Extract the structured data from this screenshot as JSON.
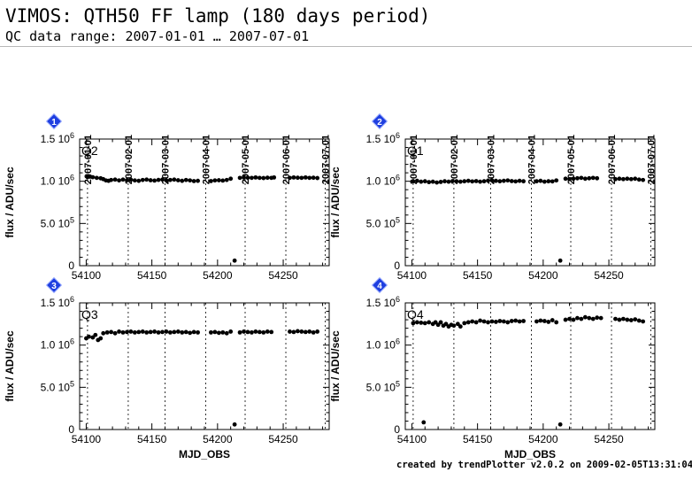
{
  "header": {
    "title": "VIMOS: QTH50 FF lamp (180 days period)",
    "subtitle": "QC data range: 2007-01-01 … 2007-07-01"
  },
  "footer": {
    "text": "created by trendPlotter v2.0.2 on 2009-02-05T13:31:04"
  },
  "colors": {
    "marker": "#000000",
    "badge": "#1f3fe0",
    "rule": "#b8b8b8"
  },
  "chart_data": {
    "type": "scatter",
    "xlabel": "MJD_OBS",
    "ylabel": "flux / ADU/sec",
    "xlim": [
      54095,
      54285
    ],
    "ylim": [
      0,
      1500000
    ],
    "x_ticks": [
      {
        "value": 54100,
        "label": "54100"
      },
      {
        "value": 54150,
        "label": "54150"
      },
      {
        "value": 54200,
        "label": "54200"
      },
      {
        "value": 54250,
        "label": "54250"
      }
    ],
    "y_ticks": [
      {
        "value": 0,
        "mant": "0",
        "exp": ""
      },
      {
        "value": 500000,
        "mant": "5.0 10",
        "exp": "5"
      },
      {
        "value": 1000000,
        "mant": "1.0 10",
        "exp": "6"
      },
      {
        "value": 1500000,
        "mant": "1.5 10",
        "exp": "6"
      }
    ],
    "date_marks": [
      {
        "date": "2007-01-01",
        "mjd": 54101
      },
      {
        "date": "2007-02-01",
        "mjd": 54132
      },
      {
        "date": "2007-03-01",
        "mjd": 54160
      },
      {
        "date": "2007-04-01",
        "mjd": 54191
      },
      {
        "date": "2007-05-01",
        "mjd": 54221
      },
      {
        "date": "2007-06-01",
        "mjd": 54252
      },
      {
        "date": "2007-07-01",
        "mjd": 54282
      }
    ],
    "panels": [
      {
        "badge": "1",
        "label": "Q2",
        "points": [
          [
            54101,
            1050000
          ],
          [
            54103,
            1055000
          ],
          [
            54105,
            1048000
          ],
          [
            54108,
            1040000
          ],
          [
            54111,
            1035000
          ],
          [
            54113,
            1025000
          ],
          [
            54115,
            1010000
          ],
          [
            54117,
            1005000
          ],
          [
            54119,
            1015000
          ],
          [
            54122,
            1020000
          ],
          [
            54125,
            1010000
          ],
          [
            54128,
            1020000
          ],
          [
            54131,
            1012000
          ],
          [
            54134,
            1018000
          ],
          [
            54137,
            1010000
          ],
          [
            54140,
            1005000
          ],
          [
            54143,
            1015000
          ],
          [
            54146,
            1020000
          ],
          [
            54149,
            1012000
          ],
          [
            54152,
            1008000
          ],
          [
            54155,
            1016000
          ],
          [
            54158,
            1020000
          ],
          [
            54161,
            1010000
          ],
          [
            54164,
            1015000
          ],
          [
            54167,
            1020000
          ],
          [
            54170,
            1012000
          ],
          [
            54173,
            1005000
          ],
          [
            54176,
            1015000
          ],
          [
            54179,
            1010000
          ],
          [
            54182,
            1002000
          ],
          [
            54185,
            1005000
          ],
          [
            54195,
            1002000
          ],
          [
            54198,
            1010000
          ],
          [
            54201,
            1012000
          ],
          [
            54204,
            1008000
          ],
          [
            54207,
            1015000
          ],
          [
            54210,
            1030000
          ],
          [
            54213,
            60000
          ],
          [
            54217,
            1040000
          ],
          [
            54220,
            1045000
          ],
          [
            54223,
            1042000
          ],
          [
            54226,
            1040000
          ],
          [
            54229,
            1045000
          ],
          [
            54232,
            1040000
          ],
          [
            54235,
            1038000
          ],
          [
            54238,
            1042000
          ],
          [
            54241,
            1040000
          ],
          [
            54243,
            1045000
          ],
          [
            54255,
            1040000
          ],
          [
            54258,
            1045000
          ],
          [
            54261,
            1042000
          ],
          [
            54264,
            1040000
          ],
          [
            54267,
            1045000
          ],
          [
            54270,
            1040000
          ],
          [
            54273,
            1042000
          ],
          [
            54276,
            1038000
          ]
        ]
      },
      {
        "badge": "2",
        "label": "Q1",
        "points": [
          [
            54101,
            1000000
          ],
          [
            54104,
            1005000
          ],
          [
            54107,
            995000
          ],
          [
            54110,
            1000000
          ],
          [
            54113,
            990000
          ],
          [
            54116,
            995000
          ],
          [
            54119,
            985000
          ],
          [
            54122,
            992000
          ],
          [
            54125,
            1000000
          ],
          [
            54128,
            995000
          ],
          [
            54131,
            1002000
          ],
          [
            54134,
            1000000
          ],
          [
            54137,
            995000
          ],
          [
            54140,
            1000000
          ],
          [
            54143,
            1005000
          ],
          [
            54146,
            998000
          ],
          [
            54149,
            1002000
          ],
          [
            54152,
            995000
          ],
          [
            54155,
            1000000
          ],
          [
            54158,
            1008000
          ],
          [
            54161,
            1010000
          ],
          [
            54164,
            1005000
          ],
          [
            54167,
            1000000
          ],
          [
            54170,
            1005000
          ],
          [
            54173,
            1010000
          ],
          [
            54176,
            1002000
          ],
          [
            54179,
            998000
          ],
          [
            54182,
            1005000
          ],
          [
            54185,
            1000000
          ],
          [
            54195,
            1000000
          ],
          [
            54198,
            1005000
          ],
          [
            54201,
            995000
          ],
          [
            54204,
            1000000
          ],
          [
            54207,
            998000
          ],
          [
            54210,
            1010000
          ],
          [
            54213,
            60000
          ],
          [
            54217,
            1030000
          ],
          [
            54220,
            1025000
          ],
          [
            54223,
            1030000
          ],
          [
            54226,
            1035000
          ],
          [
            54229,
            1040000
          ],
          [
            54232,
            1030000
          ],
          [
            54235,
            1035000
          ],
          [
            54238,
            1040000
          ],
          [
            54241,
            1035000
          ],
          [
            54255,
            1025000
          ],
          [
            54258,
            1030000
          ],
          [
            54261,
            1025000
          ],
          [
            54264,
            1030000
          ],
          [
            54267,
            1025000
          ],
          [
            54270,
            1030000
          ],
          [
            54273,
            1020000
          ],
          [
            54276,
            1015000
          ]
        ]
      },
      {
        "badge": "3",
        "label": "Q3",
        "points": [
          [
            54100,
            1080000
          ],
          [
            54102,
            1100000
          ],
          [
            54105,
            1090000
          ],
          [
            54107,
            1120000
          ],
          [
            54109,
            1060000
          ],
          [
            54111,
            1080000
          ],
          [
            54113,
            1140000
          ],
          [
            54116,
            1150000
          ],
          [
            54119,
            1155000
          ],
          [
            54122,
            1140000
          ],
          [
            54125,
            1160000
          ],
          [
            54128,
            1150000
          ],
          [
            54131,
            1155000
          ],
          [
            54134,
            1160000
          ],
          [
            54137,
            1150000
          ],
          [
            54140,
            1155000
          ],
          [
            54143,
            1160000
          ],
          [
            54146,
            1150000
          ],
          [
            54149,
            1155000
          ],
          [
            54152,
            1160000
          ],
          [
            54155,
            1150000
          ],
          [
            54158,
            1155000
          ],
          [
            54161,
            1160000
          ],
          [
            54164,
            1150000
          ],
          [
            54167,
            1155000
          ],
          [
            54170,
            1160000
          ],
          [
            54173,
            1150000
          ],
          [
            54176,
            1155000
          ],
          [
            54179,
            1145000
          ],
          [
            54182,
            1155000
          ],
          [
            54185,
            1150000
          ],
          [
            54195,
            1150000
          ],
          [
            54198,
            1155000
          ],
          [
            54201,
            1145000
          ],
          [
            54204,
            1150000
          ],
          [
            54207,
            1140000
          ],
          [
            54210,
            1160000
          ],
          [
            54213,
            60000
          ],
          [
            54217,
            1150000
          ],
          [
            54220,
            1160000
          ],
          [
            54223,
            1155000
          ],
          [
            54226,
            1150000
          ],
          [
            54229,
            1160000
          ],
          [
            54232,
            1155000
          ],
          [
            54235,
            1150000
          ],
          [
            54238,
            1160000
          ],
          [
            54241,
            1155000
          ],
          [
            54255,
            1160000
          ],
          [
            54258,
            1155000
          ],
          [
            54261,
            1165000
          ],
          [
            54264,
            1160000
          ],
          [
            54267,
            1155000
          ],
          [
            54270,
            1160000
          ],
          [
            54273,
            1150000
          ],
          [
            54276,
            1160000
          ]
        ]
      },
      {
        "badge": "4",
        "label": "Q4",
        "points": [
          [
            54101,
            1260000
          ],
          [
            54104,
            1270000
          ],
          [
            54107,
            1265000
          ],
          [
            54109,
            85000
          ],
          [
            54110,
            1260000
          ],
          [
            54113,
            1270000
          ],
          [
            54116,
            1250000
          ],
          [
            54118,
            1270000
          ],
          [
            54120,
            1240000
          ],
          [
            54122,
            1270000
          ],
          [
            54124,
            1230000
          ],
          [
            54126,
            1250000
          ],
          [
            54128,
            1220000
          ],
          [
            54130,
            1240000
          ],
          [
            54132,
            1230000
          ],
          [
            54135,
            1250000
          ],
          [
            54137,
            1220000
          ],
          [
            54140,
            1260000
          ],
          [
            54143,
            1270000
          ],
          [
            54146,
            1280000
          ],
          [
            54149,
            1270000
          ],
          [
            54152,
            1290000
          ],
          [
            54155,
            1280000
          ],
          [
            54158,
            1270000
          ],
          [
            54161,
            1280000
          ],
          [
            54164,
            1275000
          ],
          [
            54167,
            1285000
          ],
          [
            54170,
            1280000
          ],
          [
            54173,
            1270000
          ],
          [
            54176,
            1285000
          ],
          [
            54179,
            1290000
          ],
          [
            54182,
            1280000
          ],
          [
            54185,
            1285000
          ],
          [
            54195,
            1280000
          ],
          [
            54198,
            1290000
          ],
          [
            54201,
            1285000
          ],
          [
            54204,
            1275000
          ],
          [
            54207,
            1295000
          ],
          [
            54210,
            1270000
          ],
          [
            54213,
            60000
          ],
          [
            54217,
            1300000
          ],
          [
            54220,
            1310000
          ],
          [
            54223,
            1300000
          ],
          [
            54226,
            1320000
          ],
          [
            54229,
            1310000
          ],
          [
            54232,
            1330000
          ],
          [
            54235,
            1320000
          ],
          [
            54238,
            1310000
          ],
          [
            54241,
            1325000
          ],
          [
            54244,
            1320000
          ],
          [
            54255,
            1310000
          ],
          [
            54258,
            1300000
          ],
          [
            54261,
            1310000
          ],
          [
            54264,
            1300000
          ],
          [
            54267,
            1295000
          ],
          [
            54270,
            1305000
          ],
          [
            54273,
            1290000
          ],
          [
            54276,
            1280000
          ]
        ]
      }
    ]
  }
}
